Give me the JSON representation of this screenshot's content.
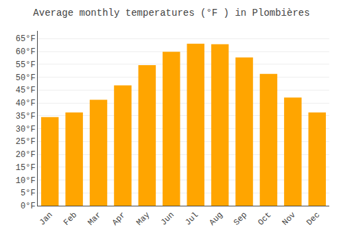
{
  "chart_data": {
    "type": "bar",
    "title": "Average monthly temperatures (°F ) in Plombières",
    "categories": [
      "Jan",
      "Feb",
      "Mar",
      "Apr",
      "May",
      "Jun",
      "Jul",
      "Aug",
      "Sep",
      "Oct",
      "Nov",
      "Dec"
    ],
    "values": [
      34.5,
      36.3,
      41.2,
      46.8,
      54.7,
      59.9,
      63.0,
      62.8,
      57.7,
      51.3,
      42.1,
      36.3
    ],
    "color": "#FFA500",
    "ylim": [
      0,
      68
    ],
    "yticks": [
      {
        "value": 0,
        "label": "0°F"
      },
      {
        "value": 5,
        "label": "5°F"
      },
      {
        "value": 10,
        "label": "10°F"
      },
      {
        "value": 15,
        "label": "15°F"
      },
      {
        "value": 20,
        "label": "20°F"
      },
      {
        "value": 25,
        "label": "25°F"
      },
      {
        "value": 30,
        "label": "30°F"
      },
      {
        "value": 35,
        "label": "35°F"
      },
      {
        "value": 40,
        "label": "40°F"
      },
      {
        "value": 45,
        "label": "45°F"
      },
      {
        "value": 50,
        "label": "50°F"
      },
      {
        "value": 55,
        "label": "55°F"
      },
      {
        "value": 60,
        "label": "60°F"
      },
      {
        "value": 65,
        "label": "65°F"
      }
    ],
    "grid": true
  }
}
